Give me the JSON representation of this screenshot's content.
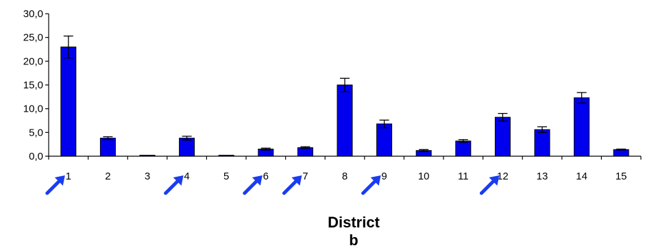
{
  "chart_data": {
    "type": "bar",
    "title": "",
    "xlabel": "District",
    "ylabel": "",
    "panel_label": "b",
    "ylim": [
      0,
      30
    ],
    "yticks": [
      "0,0",
      "5,0",
      "10,0",
      "15,0",
      "20,0",
      "25,0",
      "30,0"
    ],
    "ytick_values": [
      0,
      5,
      10,
      15,
      20,
      25,
      30
    ],
    "categories": [
      "1",
      "2",
      "3",
      "4",
      "5",
      "6",
      "7",
      "8",
      "9",
      "10",
      "11",
      "12",
      "13",
      "14",
      "15"
    ],
    "values": [
      23.0,
      3.8,
      0.1,
      3.8,
      0.1,
      1.5,
      1.8,
      15.0,
      6.8,
      1.2,
      3.2,
      8.2,
      5.6,
      12.3,
      1.4
    ],
    "errors": [
      2.3,
      0.3,
      0.05,
      0.4,
      0.05,
      0.2,
      0.2,
      1.4,
      0.8,
      0.2,
      0.3,
      0.8,
      0.6,
      1.1,
      0.1
    ],
    "bar_color": "#0000ee",
    "arrow_color": "#1a3cf0",
    "arrow_categories": [
      "1",
      "4",
      "6",
      "7",
      "9",
      "12"
    ],
    "grid": false,
    "legend": "none"
  }
}
